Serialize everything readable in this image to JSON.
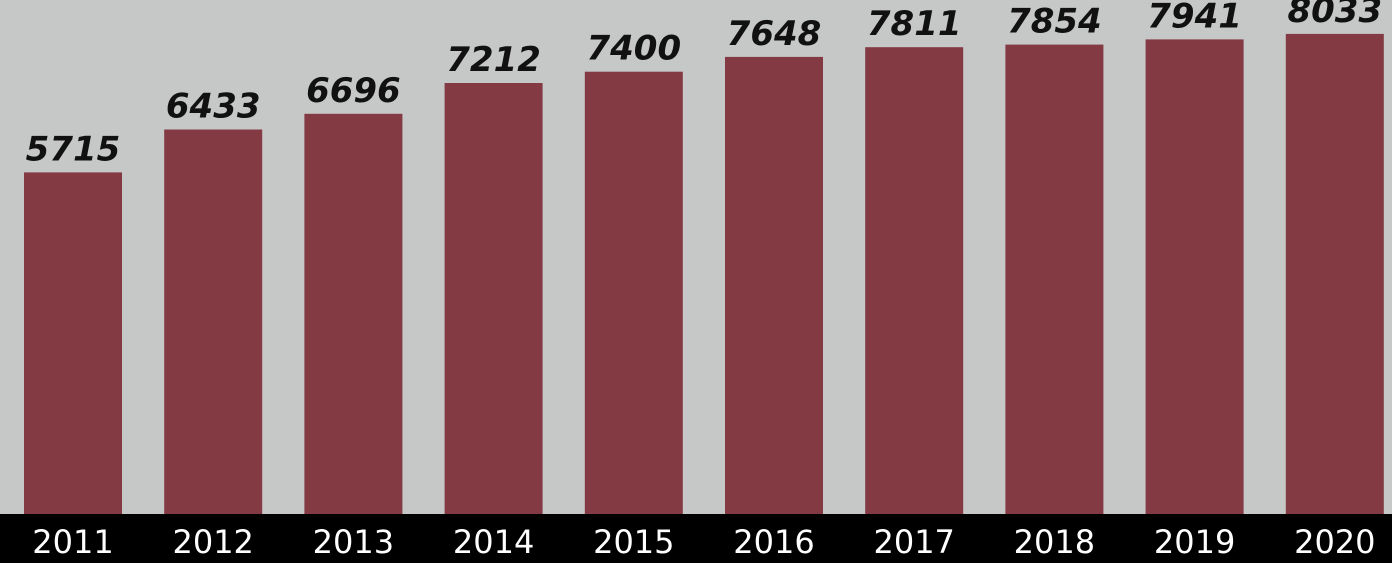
{
  "chart_data": {
    "type": "bar",
    "categories": [
      "2011",
      "2012",
      "2013",
      "2014",
      "2015",
      "2016",
      "2017",
      "2018",
      "2019",
      "2020"
    ],
    "values": [
      5715,
      6433,
      6696,
      7212,
      7400,
      7648,
      7811,
      7854,
      7941,
      8033
    ],
    "title": "",
    "xlabel": "",
    "ylabel": "",
    "ylim": [
      0,
      8600
    ],
    "grid": false,
    "legend": "none",
    "data_labels": true
  },
  "colors": {
    "bar": "#843a43",
    "background": "#c6c8c8",
    "axis_band": "#000000",
    "value_text": "#111111",
    "year_text": "#ffffff"
  }
}
